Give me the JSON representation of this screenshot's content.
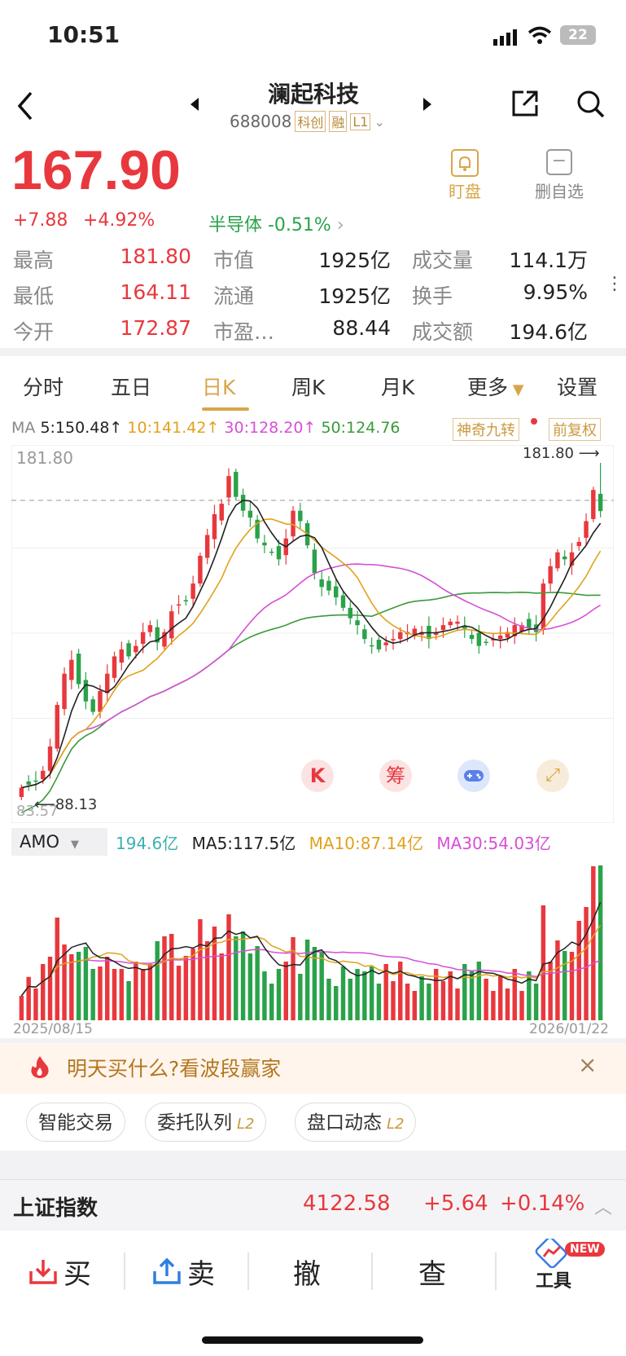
{
  "status_bar": {
    "time": "10:51",
    "battery": "22"
  },
  "header": {
    "name": "澜起科技",
    "code": "688008",
    "badge_kc": "科创",
    "badge_rong": "融",
    "badge_l1": "L1"
  },
  "quote": {
    "price": "167.90",
    "change": "+7.88",
    "change_pct": "+4.92%",
    "sector": "半导体 -0.51%",
    "watch_label": "盯盘",
    "remove_label": "删自选"
  },
  "stats": [
    {
      "label": "最高",
      "value": "181.80",
      "color": "red"
    },
    {
      "label": "市值",
      "value": "1925亿",
      "color": "dark"
    },
    {
      "label": "成交量",
      "value": "114.1万",
      "color": "dark"
    },
    {
      "label": "最低",
      "value": "164.11",
      "color": "red"
    },
    {
      "label": "流通",
      "value": "1925亿",
      "color": "dark"
    },
    {
      "label": "换手",
      "value": "9.95%",
      "color": "dark"
    },
    {
      "label": "今开",
      "value": "172.87",
      "color": "red"
    },
    {
      "label": "市盈…",
      "value": "88.44",
      "color": "dark"
    },
    {
      "label": "成交额",
      "value": "194.6亿",
      "color": "dark"
    }
  ],
  "tabs": [
    "分时",
    "五日",
    "日K",
    "周K",
    "月K",
    "更多",
    "设置"
  ],
  "ma_bar": {
    "ma_label": "MA",
    "ma5": "5:150.48↑",
    "ma10": "10:141.42↑",
    "ma30": "30:128.20↑",
    "ma50": "50:124.76",
    "tag1": "神奇九转",
    "tag2": "前复权"
  },
  "chart_labels": {
    "high_label": "181.80",
    "high_marker": "181.80",
    "low_left": "83.57",
    "low_marker": "88.13",
    "k_btn": "K",
    "chou_btn": "筹",
    "game_icon": "gamepad-icon",
    "expand_icon": "expand-icon"
  },
  "amo_bar": {
    "label": "AMO",
    "value": "194.6亿",
    "ma5": "MA5:117.5亿",
    "ma10": "MA10:87.14亿",
    "ma30": "MA30:54.03亿"
  },
  "date_start": "2025/08/15",
  "date_end": "2026/01/22",
  "promo": {
    "text": "明天买什么?看波段赢家",
    "close": "×"
  },
  "pills": [
    {
      "label": "智能交易",
      "l2": ""
    },
    {
      "label": "委托队列",
      "l2": "L2"
    },
    {
      "label": "盘口动态",
      "l2": "L2"
    }
  ],
  "index_bar": {
    "name": "上证指数",
    "value": "4122.58",
    "change": "+5.64",
    "pct": "+0.14%"
  },
  "bottom": {
    "buy": "买",
    "sell": "卖",
    "cancel": "撤",
    "query": "查",
    "tools": "工具",
    "new_badge": "NEW"
  },
  "colors": {
    "up": "#e8383d",
    "down": "#2aa24a",
    "ma5": "#222222",
    "ma10": "#e0a21c",
    "ma30": "#d64fd6",
    "ma50": "#3a9a3a"
  },
  "chart_data": {
    "type": "candlestick",
    "x_start": "2025/08/15",
    "x_end": "2026/01/22",
    "ylim": [
      83.57,
      181.8
    ],
    "closes": [
      88.13,
      89,
      90,
      93,
      100,
      112,
      121,
      125,
      118,
      113,
      110,
      116,
      121,
      126,
      128,
      126,
      129,
      133,
      135,
      130,
      133,
      139,
      141,
      142,
      147,
      155,
      161,
      167,
      170,
      178,
      172,
      168,
      166,
      160,
      158,
      156,
      154,
      160,
      168,
      165,
      158,
      150,
      146,
      145,
      143,
      140,
      137,
      135,
      131,
      129,
      128,
      130,
      131,
      133,
      133,
      134,
      133,
      131,
      133,
      135,
      136,
      136,
      134,
      131,
      129,
      130,
      131,
      132,
      133,
      135,
      135,
      134,
      133,
      147,
      152,
      156,
      154,
      156,
      159,
      165,
      174,
      167.9
    ]
  }
}
